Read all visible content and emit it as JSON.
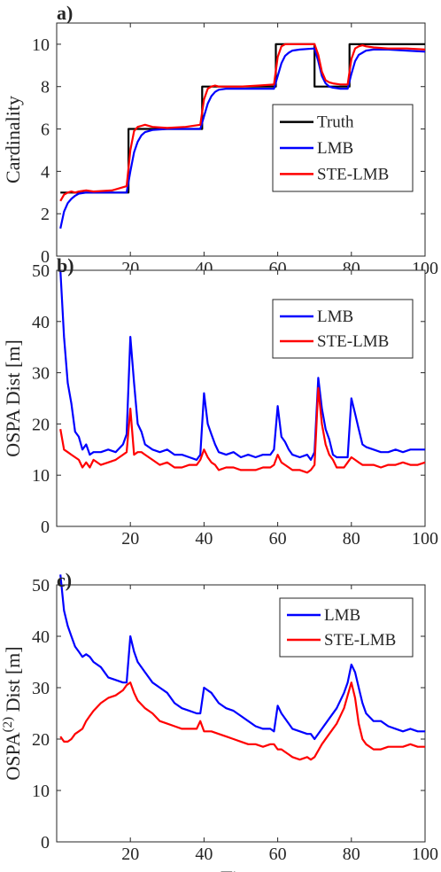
{
  "chart_data": [
    {
      "type": "line",
      "panel_label": "a)",
      "xlabel": "",
      "ylabel": "Cardinality",
      "xlim": [
        0,
        100
      ],
      "ylim": [
        0,
        11
      ],
      "xticks": [
        20,
        40,
        60,
        80,
        100
      ],
      "yticks": [
        0,
        2,
        4,
        6,
        8,
        10
      ],
      "grid": false,
      "legend_position": "lower-right",
      "series": [
        {
          "name": "Truth",
          "color": "#000000",
          "x": [
            1,
            19.5,
            19.5,
            39.5,
            39.5,
            59.5,
            59.5,
            70,
            70,
            79.5,
            79.5,
            100
          ],
          "values": [
            3,
            3,
            6,
            6,
            8,
            8,
            10,
            10,
            8,
            8,
            10,
            10
          ]
        },
        {
          "name": "LMB",
          "color": "#0000ff",
          "x": [
            1,
            2,
            3,
            4,
            5,
            6,
            8,
            10,
            15,
            19,
            20,
            21,
            22,
            23,
            24,
            26,
            30,
            35,
            39,
            40,
            41,
            42,
            43,
            44,
            46,
            50,
            55,
            59,
            60,
            61,
            62,
            63,
            64,
            66,
            70,
            71,
            72,
            73,
            74,
            75,
            77,
            79,
            80,
            81,
            82,
            83,
            84,
            86,
            90,
            95,
            100
          ],
          "values": [
            1.3,
            2.1,
            2.5,
            2.7,
            2.85,
            2.95,
            3.0,
            3.0,
            3.0,
            3.0,
            4.0,
            4.9,
            5.4,
            5.7,
            5.85,
            5.95,
            6.0,
            6.0,
            6.0,
            6.6,
            7.2,
            7.55,
            7.75,
            7.85,
            7.9,
            7.9,
            7.9,
            7.9,
            8.5,
            9.1,
            9.45,
            9.6,
            9.7,
            9.75,
            9.8,
            9.2,
            8.5,
            8.15,
            8.0,
            7.95,
            7.9,
            7.9,
            8.6,
            9.2,
            9.5,
            9.6,
            9.7,
            9.75,
            9.75,
            9.7,
            9.65
          ]
        },
        {
          "name": "STE-LMB",
          "color": "#ff0000",
          "x": [
            1,
            2,
            3,
            4,
            5,
            6,
            8,
            10,
            15,
            19,
            20,
            21,
            22,
            23,
            24,
            26,
            30,
            35,
            39,
            40,
            41,
            42,
            43,
            44,
            46,
            50,
            55,
            59,
            60,
            61,
            62,
            63,
            64,
            66,
            70,
            71,
            72,
            73,
            74,
            75,
            77,
            79,
            80,
            81,
            82,
            83,
            84,
            86,
            90,
            95,
            100
          ],
          "values": [
            2.6,
            2.9,
            3.0,
            3.05,
            3.0,
            3.05,
            3.1,
            3.05,
            3.1,
            3.3,
            5.0,
            5.9,
            6.1,
            6.15,
            6.2,
            6.1,
            6.05,
            6.1,
            6.2,
            7.4,
            7.9,
            8.0,
            8.05,
            8.0,
            8.0,
            8.0,
            8.05,
            8.1,
            9.4,
            9.9,
            10.0,
            10.0,
            10.0,
            10.0,
            10.0,
            9.5,
            8.7,
            8.3,
            8.2,
            8.15,
            8.1,
            8.1,
            9.3,
            9.8,
            9.9,
            9.95,
            9.9,
            9.85,
            9.8,
            9.8,
            9.75
          ]
        }
      ]
    },
    {
      "type": "line",
      "panel_label": "b)",
      "xlabel": "",
      "ylabel": "OSPA Dist [m]",
      "xlim": [
        0,
        100
      ],
      "ylim": [
        0,
        50
      ],
      "xticks": [
        20,
        40,
        60,
        80,
        100
      ],
      "yticks": [
        0,
        10,
        20,
        30,
        40,
        50
      ],
      "grid": false,
      "legend_position": "top-right",
      "series": [
        {
          "name": "LMB",
          "color": "#0000ff",
          "x": [
            1,
            2,
            3,
            4,
            5,
            6,
            7,
            8,
            9,
            10,
            12,
            14,
            16,
            18,
            19,
            20,
            21,
            22,
            23,
            24,
            26,
            28,
            30,
            32,
            34,
            36,
            38,
            39,
            40,
            41,
            42,
            43,
            44,
            46,
            48,
            50,
            52,
            54,
            56,
            58,
            59,
            60,
            61,
            62,
            63,
            64,
            66,
            68,
            69,
            70,
            71,
            72,
            73,
            74,
            75,
            76,
            77,
            78,
            79,
            80,
            81,
            82,
            83,
            84,
            86,
            88,
            90,
            92,
            94,
            96,
            98,
            100
          ],
          "values": [
            50,
            37,
            28,
            24,
            18.5,
            17.5,
            15,
            16,
            14,
            14.5,
            14.5,
            15,
            14.5,
            16,
            18,
            37,
            28,
            20,
            18.5,
            16,
            15,
            14.5,
            15,
            14,
            14,
            13.5,
            13,
            14,
            26,
            20,
            18,
            16,
            14.5,
            14,
            14.5,
            13.5,
            14,
            13.5,
            14,
            14,
            15,
            23.5,
            17.5,
            16.5,
            15,
            14,
            13.5,
            14,
            13,
            14.5,
            29,
            23,
            19,
            17,
            14,
            13.5,
            13.5,
            13.5,
            13.5,
            25,
            22,
            19,
            16,
            15.5,
            15,
            14.5,
            14.5,
            15,
            14.5,
            15,
            15,
            15
          ]
        },
        {
          "name": "STE-LMB",
          "color": "#ff0000",
          "x": [
            1,
            2,
            3,
            4,
            5,
            6,
            7,
            8,
            9,
            10,
            12,
            14,
            16,
            18,
            19,
            20,
            21,
            22,
            23,
            24,
            26,
            28,
            30,
            32,
            34,
            36,
            38,
            39,
            40,
            41,
            42,
            43,
            44,
            46,
            48,
            50,
            52,
            54,
            56,
            58,
            59,
            60,
            61,
            62,
            63,
            64,
            66,
            68,
            69,
            70,
            71,
            72,
            73,
            74,
            75,
            76,
            77,
            78,
            79,
            80,
            81,
            82,
            83,
            84,
            86,
            88,
            90,
            92,
            94,
            96,
            98,
            100
          ],
          "values": [
            19,
            15,
            14.5,
            14,
            13.5,
            13,
            11.5,
            12.5,
            11.5,
            13,
            12,
            12.5,
            13,
            14,
            14.5,
            23,
            14,
            14.5,
            14.5,
            14,
            13,
            12,
            12.5,
            11.5,
            11.5,
            12,
            12,
            13,
            15,
            13.5,
            12.5,
            12,
            11,
            11.5,
            11.5,
            11,
            11,
            11,
            11.5,
            11.5,
            12,
            14,
            12.5,
            12,
            11.5,
            11,
            11,
            10.5,
            11,
            12,
            27,
            20,
            16,
            14,
            13,
            11.5,
            11.5,
            11.5,
            12.5,
            13.5,
            13,
            12.5,
            12,
            12,
            12,
            11.5,
            12,
            12,
            12.5,
            12,
            12,
            12.5
          ]
        }
      ]
    },
    {
      "type": "line",
      "panel_label": "c)",
      "xlabel": "Time",
      "ylabel": "OSPA(2) Dist [m]",
      "ylabel_main": "OSPA",
      "ylabel_sup": "(2)",
      "ylabel_rest": "Dist [m]",
      "xlim": [
        0,
        100
      ],
      "ylim": [
        0,
        50
      ],
      "xticks": [
        20,
        40,
        60,
        80,
        100
      ],
      "yticks": [
        0,
        10,
        20,
        30,
        40,
        50
      ],
      "grid": false,
      "legend_position": "top-right",
      "series": [
        {
          "name": "LMB",
          "color": "#0000ff",
          "x": [
            1,
            2,
            3,
            4,
            5,
            6,
            7,
            8,
            9,
            10,
            12,
            14,
            16,
            18,
            19,
            20,
            21,
            22,
            24,
            26,
            28,
            30,
            32,
            34,
            36,
            38,
            39,
            40,
            42,
            44,
            46,
            48,
            50,
            52,
            54,
            56,
            58,
            59,
            60,
            61,
            62,
            63,
            64,
            66,
            68,
            69,
            70,
            72,
            74,
            76,
            78,
            79,
            80,
            81,
            82,
            83,
            84,
            86,
            88,
            90,
            92,
            94,
            96,
            98,
            100
          ],
          "values": [
            52,
            45,
            42,
            40,
            38,
            37,
            36,
            36.5,
            36,
            35,
            34,
            32,
            31.5,
            31,
            31,
            40,
            37,
            35,
            33,
            31,
            30,
            29,
            27,
            26,
            25.5,
            25,
            25,
            30,
            29,
            27,
            26,
            25.5,
            24.5,
            23.5,
            22.5,
            22,
            22,
            21.5,
            26.5,
            25,
            24,
            23,
            22,
            21.5,
            21,
            21,
            20,
            22,
            24,
            26,
            29,
            31,
            34.5,
            33,
            30,
            27,
            25,
            23.5,
            23.5,
            22.5,
            22,
            21.5,
            22,
            21.5,
            21.5
          ]
        },
        {
          "name": "STE-LMB",
          "color": "#ff0000",
          "x": [
            1,
            2,
            3,
            4,
            5,
            6,
            7,
            8,
            9,
            10,
            12,
            14,
            16,
            18,
            19,
            20,
            21,
            22,
            24,
            26,
            28,
            30,
            32,
            34,
            36,
            38,
            39,
            40,
            42,
            44,
            46,
            48,
            50,
            52,
            54,
            56,
            58,
            59,
            60,
            61,
            62,
            63,
            64,
            66,
            68,
            69,
            70,
            72,
            74,
            76,
            78,
            79,
            80,
            81,
            82,
            83,
            84,
            86,
            88,
            90,
            92,
            94,
            96,
            98,
            100
          ],
          "values": [
            20.5,
            19.5,
            19.5,
            20,
            21,
            21.5,
            22,
            23.5,
            24.5,
            25.5,
            27,
            28,
            28.5,
            29.5,
            30.5,
            31,
            29,
            27.5,
            26,
            25,
            23.5,
            23,
            22.5,
            22,
            22,
            22,
            23.5,
            21.5,
            21.5,
            21,
            20.5,
            20,
            19.5,
            19,
            19,
            18.5,
            19,
            19,
            18,
            18,
            17.5,
            17,
            16.5,
            16,
            16.5,
            16,
            16.5,
            19,
            21,
            23,
            26,
            28.5,
            31,
            28,
            23,
            20,
            19,
            18,
            18,
            18.5,
            18.5,
            18.5,
            19,
            18.5,
            18.5
          ]
        }
      ]
    }
  ]
}
